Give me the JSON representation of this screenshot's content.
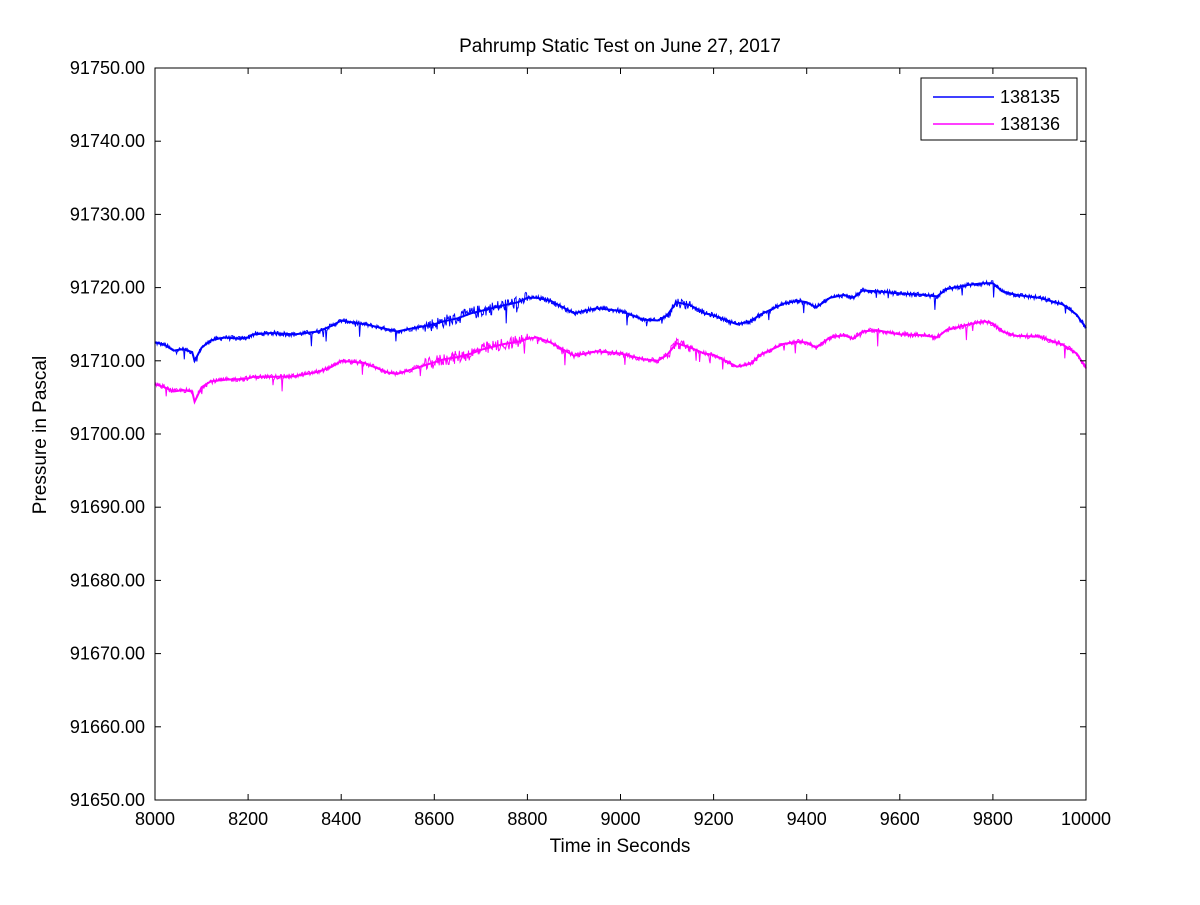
{
  "chart_data": {
    "type": "line",
    "title": "Pahrump Static Test on June 27, 2017",
    "xlabel": "Time in Seconds",
    "ylabel": "Pressure in Pascal",
    "xlim": [
      8000,
      10000
    ],
    "ylim": [
      91650,
      91750
    ],
    "x_ticks": [
      "8000",
      "8200",
      "8400",
      "8600",
      "8800",
      "9000",
      "9200",
      "9400",
      "9600",
      "9800",
      "10000"
    ],
    "y_ticks": [
      "91650.00",
      "91660.00",
      "91670.00",
      "91680.00",
      "91690.00",
      "91700.00",
      "91710.00",
      "91720.00",
      "91730.00",
      "91740.00",
      "91750.00"
    ],
    "grid": false,
    "legend_position": "top-right",
    "series": [
      {
        "name": "138135",
        "color": "#0000ff",
        "x": [
          8000,
          8020,
          8040,
          8060,
          8080,
          8085,
          8100,
          8120,
          8150,
          8180,
          8200,
          8210,
          8250,
          8300,
          8350,
          8380,
          8400,
          8450,
          8500,
          8520,
          8550,
          8600,
          8620,
          8650,
          8680,
          8700,
          8750,
          8780,
          8800,
          8820,
          8850,
          8900,
          8950,
          9000,
          9050,
          9080,
          9100,
          9120,
          9150,
          9180,
          9200,
          9250,
          9280,
          9300,
          9350,
          9380,
          9400,
          9420,
          9450,
          9480,
          9500,
          9520,
          9550,
          9600,
          9650,
          9680,
          9700,
          9750,
          9780,
          9800,
          9820,
          9850,
          9900,
          9950,
          9980,
          10000
        ],
        "y": [
          91712.5,
          91712.2,
          91711.4,
          91711.6,
          91711.2,
          91710.0,
          91711.8,
          91712.8,
          91713.2,
          91713.0,
          91713.2,
          91713.6,
          91713.8,
          91713.6,
          91714.0,
          91714.8,
          91715.5,
          91715.0,
          91714.3,
          91714.0,
          91714.4,
          91715.0,
          91715.4,
          91715.8,
          91716.5,
          91716.8,
          91717.6,
          91718.0,
          91718.6,
          91718.6,
          91718.2,
          91716.5,
          91717.2,
          91716.8,
          91715.6,
          91715.5,
          91716.2,
          91718.0,
          91717.6,
          91716.5,
          91716.2,
          91715.0,
          91715.4,
          91716.3,
          91717.8,
          91718.2,
          91718.0,
          91717.3,
          91718.6,
          91719.0,
          91718.6,
          91719.6,
          91719.5,
          91719.2,
          91719.0,
          91718.8,
          91719.8,
          91720.4,
          91720.6,
          91720.6,
          91719.5,
          91719.0,
          91718.6,
          91717.7,
          91716.3,
          91714.5
        ]
      },
      {
        "name": "138136",
        "color": "#ff00ff",
        "x": [
          8000,
          8020,
          8040,
          8060,
          8080,
          8085,
          8100,
          8120,
          8150,
          8180,
          8200,
          8210,
          8250,
          8300,
          8350,
          8380,
          8400,
          8450,
          8500,
          8520,
          8550,
          8600,
          8620,
          8650,
          8680,
          8700,
          8750,
          8780,
          8800,
          8820,
          8850,
          8900,
          8950,
          9000,
          9050,
          9080,
          9100,
          9120,
          9150,
          9180,
          9200,
          9250,
          9280,
          9300,
          9350,
          9380,
          9400,
          9420,
          9450,
          9480,
          9500,
          9520,
          9550,
          9600,
          9650,
          9680,
          9700,
          9750,
          9780,
          9800,
          9820,
          9850,
          9900,
          9950,
          9980,
          10000
        ],
        "y": [
          91706.8,
          91706.4,
          91705.8,
          91706.0,
          91705.8,
          91704.4,
          91706.4,
          91707.2,
          91707.4,
          91707.5,
          91707.6,
          91707.8,
          91707.8,
          91707.9,
          91708.5,
          91709.2,
          91710.0,
          91709.7,
          91708.4,
          91708.2,
          91708.8,
          91709.8,
          91710.2,
          91710.5,
          91711.0,
          91711.5,
          91712.3,
          91712.6,
          91713.0,
          91713.2,
          91712.5,
          91710.7,
          91711.3,
          91711.0,
          91710.2,
          91710.0,
          91710.8,
          91712.4,
          91711.8,
          91711.0,
          91710.8,
          91709.2,
          91709.6,
          91710.8,
          91712.3,
          91712.6,
          91712.5,
          91711.8,
          91713.2,
          91713.5,
          91713.0,
          91714.0,
          91714.2,
          91713.6,
          91713.5,
          91713.2,
          91714.2,
          91715.0,
          91715.4,
          91715.1,
          91714.0,
          91713.4,
          91713.3,
          91712.2,
          91711.0,
          91709.0
        ]
      }
    ]
  }
}
